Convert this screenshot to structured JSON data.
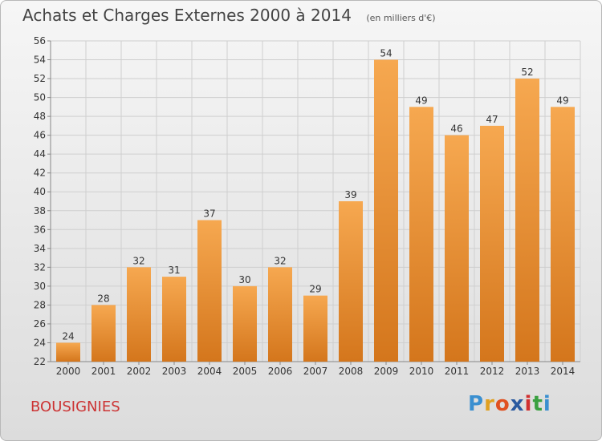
{
  "title": "Achats et Charges Externes 2000 à 2014",
  "subtitle": "(en milliers d'€)",
  "place": "BOUSIGNIES",
  "logo": {
    "text": "Proxiti",
    "letter_colors": [
      "#3a8fd0",
      "#e0a020",
      "#e05020",
      "#2a5aa0",
      "#d03030",
      "#3aa040",
      "#3a8fd0"
    ]
  },
  "colors": {
    "bar_top": "#f6a850",
    "bar_bottom": "#d4761c",
    "grid": "#cfcfcf",
    "axis_text": "#333333"
  },
  "chart_data": {
    "type": "bar",
    "categories": [
      "2000",
      "2001",
      "2002",
      "2003",
      "2004",
      "2005",
      "2006",
      "2007",
      "2008",
      "2009",
      "2010",
      "2011",
      "2012",
      "2013",
      "2014"
    ],
    "values": [
      24,
      28,
      32,
      31,
      37,
      30,
      32,
      29,
      39,
      54,
      49,
      46,
      47,
      52,
      49
    ],
    "ylim": [
      22,
      56
    ],
    "yticks": [
      22,
      24,
      26,
      28,
      30,
      32,
      34,
      36,
      38,
      40,
      42,
      44,
      46,
      48,
      50,
      52,
      54,
      56
    ],
    "grid": true,
    "data_labels": true
  }
}
